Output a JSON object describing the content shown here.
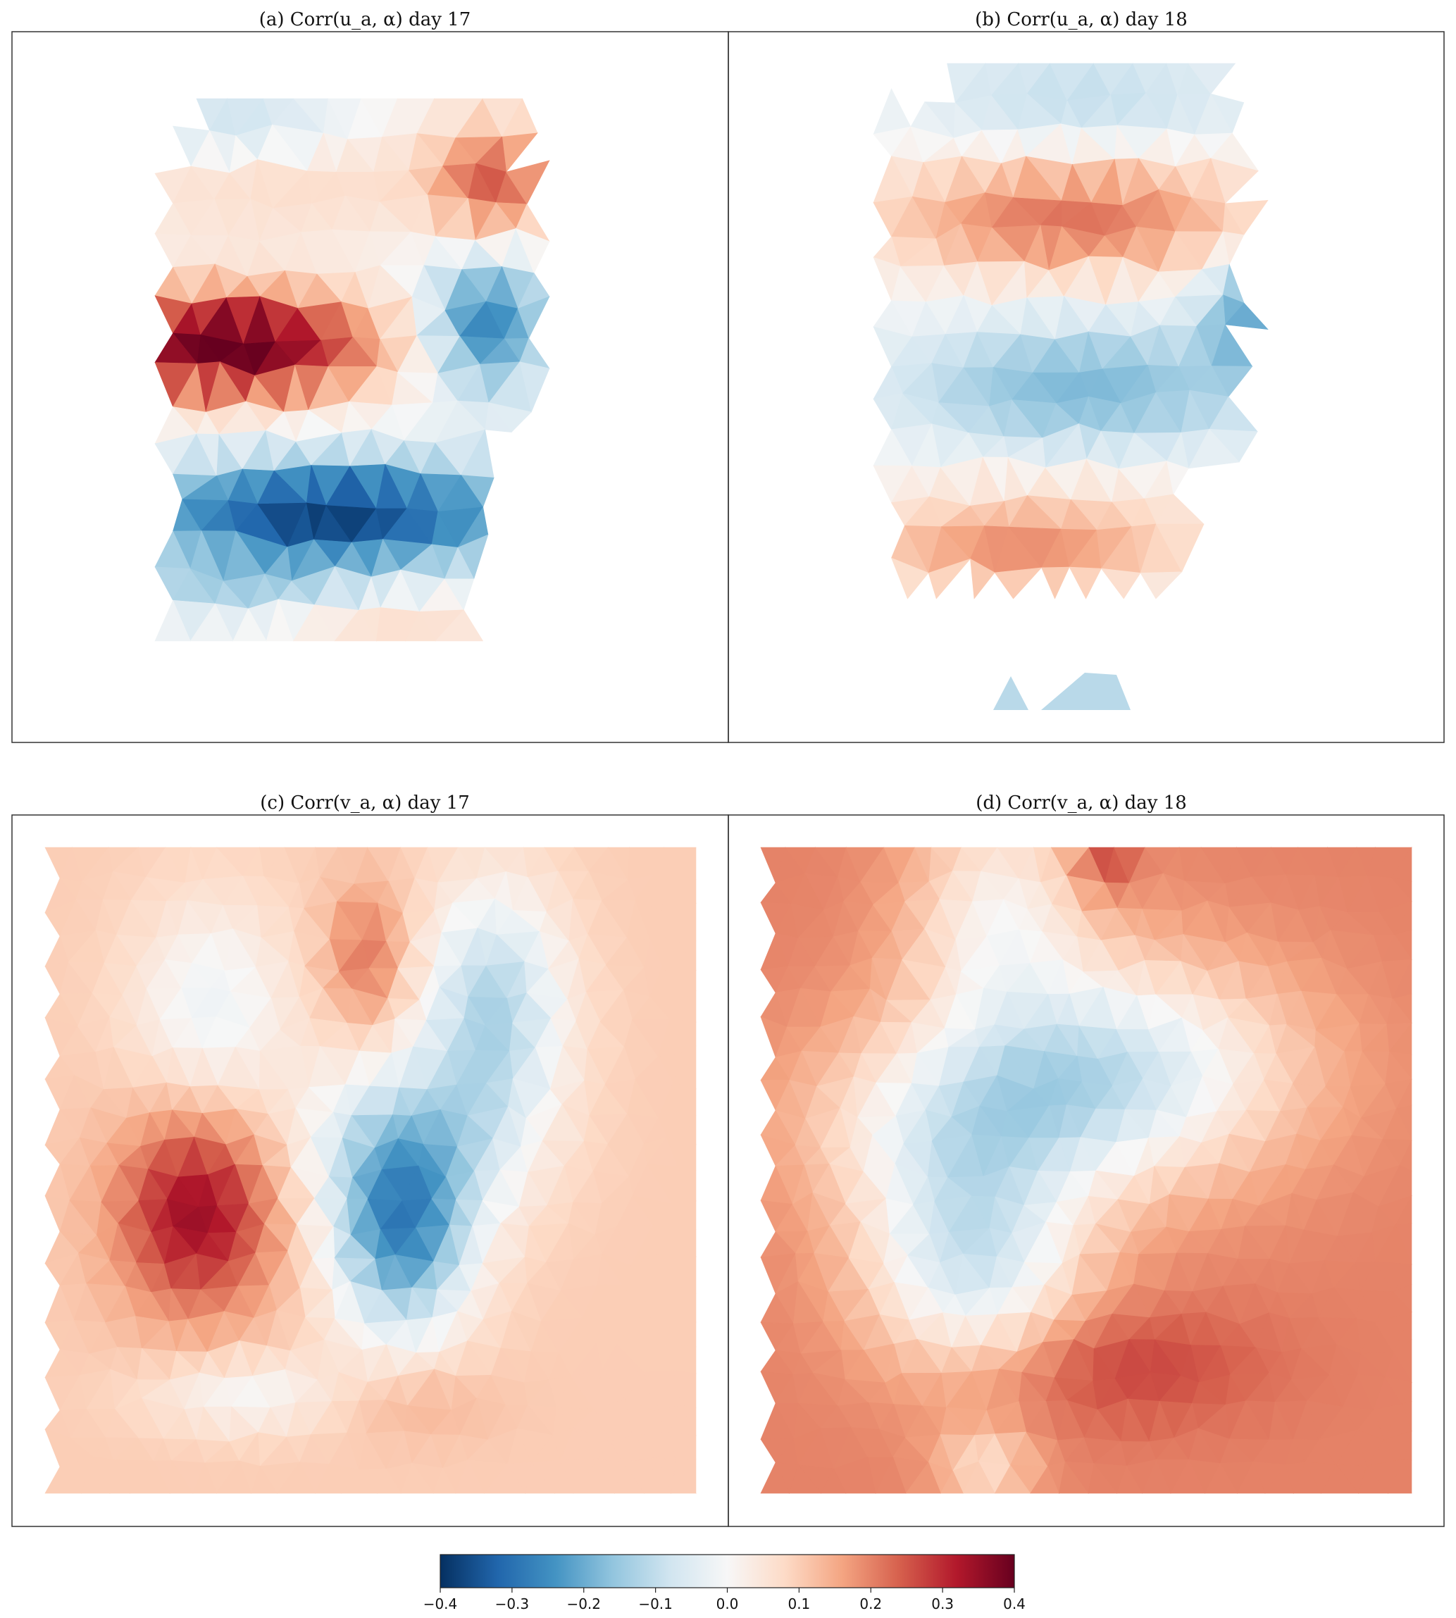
{
  "chart_data": [
    {
      "type": "heatmap",
      "panel": "a",
      "title": "(a) Corr(u_a, α) day 17",
      "colorscale": "RdBu_r",
      "clim": [
        -0.4,
        0.4
      ],
      "mask": "irregular",
      "approx_bands_top_to_bottom": [
        {
          "region": "top",
          "value": -0.1
        },
        {
          "region": "upper-middle",
          "value": 0.15
        },
        {
          "region": "left-middle",
          "value": 0.4
        },
        {
          "region": "right-middle",
          "value": -0.25
        },
        {
          "region": "lower-middle",
          "value": -0.35
        },
        {
          "region": "bottom",
          "value": -0.1
        }
      ]
    },
    {
      "type": "heatmap",
      "panel": "b",
      "title": "(b) Corr(u_a, α) day 18",
      "colorscale": "RdBu_r",
      "clim": [
        -0.4,
        0.4
      ],
      "mask": "irregular",
      "approx_bands_top_to_bottom": [
        {
          "region": "top",
          "value": -0.05
        },
        {
          "region": "upper",
          "value": 0.2
        },
        {
          "region": "middle",
          "value": -0.15
        },
        {
          "region": "lower",
          "value": 0.15
        },
        {
          "region": "bottom-fragments",
          "value": -0.1
        }
      ]
    },
    {
      "type": "heatmap",
      "panel": "c",
      "title": "(c) Corr(v_a, α) day 17",
      "colorscale": "RdBu_r",
      "clim": [
        -0.4,
        0.4
      ],
      "background_value": 0.1,
      "features": [
        {
          "region": "left-center",
          "value": 0.35
        },
        {
          "region": "center",
          "value": -0.3
        },
        {
          "region": "upper-right",
          "value": -0.1
        },
        {
          "region": "upper-center",
          "value": 0.2
        }
      ]
    },
    {
      "type": "heatmap",
      "panel": "d",
      "title": "(d) Corr(v_a, α) day 18",
      "colorscale": "RdBu_r",
      "clim": [
        -0.4,
        0.4
      ],
      "background_value": 0.18,
      "features": [
        {
          "region": "top-center",
          "value": -0.03
        },
        {
          "region": "center-right",
          "value": -0.12
        },
        {
          "region": "lower-left",
          "value": -0.1
        },
        {
          "region": "bottom-center",
          "value": 0.25
        }
      ]
    }
  ],
  "colorbar": {
    "ticks": [
      "−0.4",
      "−0.3",
      "−0.2",
      "−0.1",
      "0.0",
      "0.1",
      "0.2",
      "0.3",
      "0.4"
    ],
    "colors": [
      "#053061",
      "#2166ac",
      "#4393c3",
      "#92c5de",
      "#d1e5f0",
      "#f7f7f7",
      "#fddbc7",
      "#f4a582",
      "#d6604d",
      "#b2182b",
      "#67001f"
    ]
  }
}
